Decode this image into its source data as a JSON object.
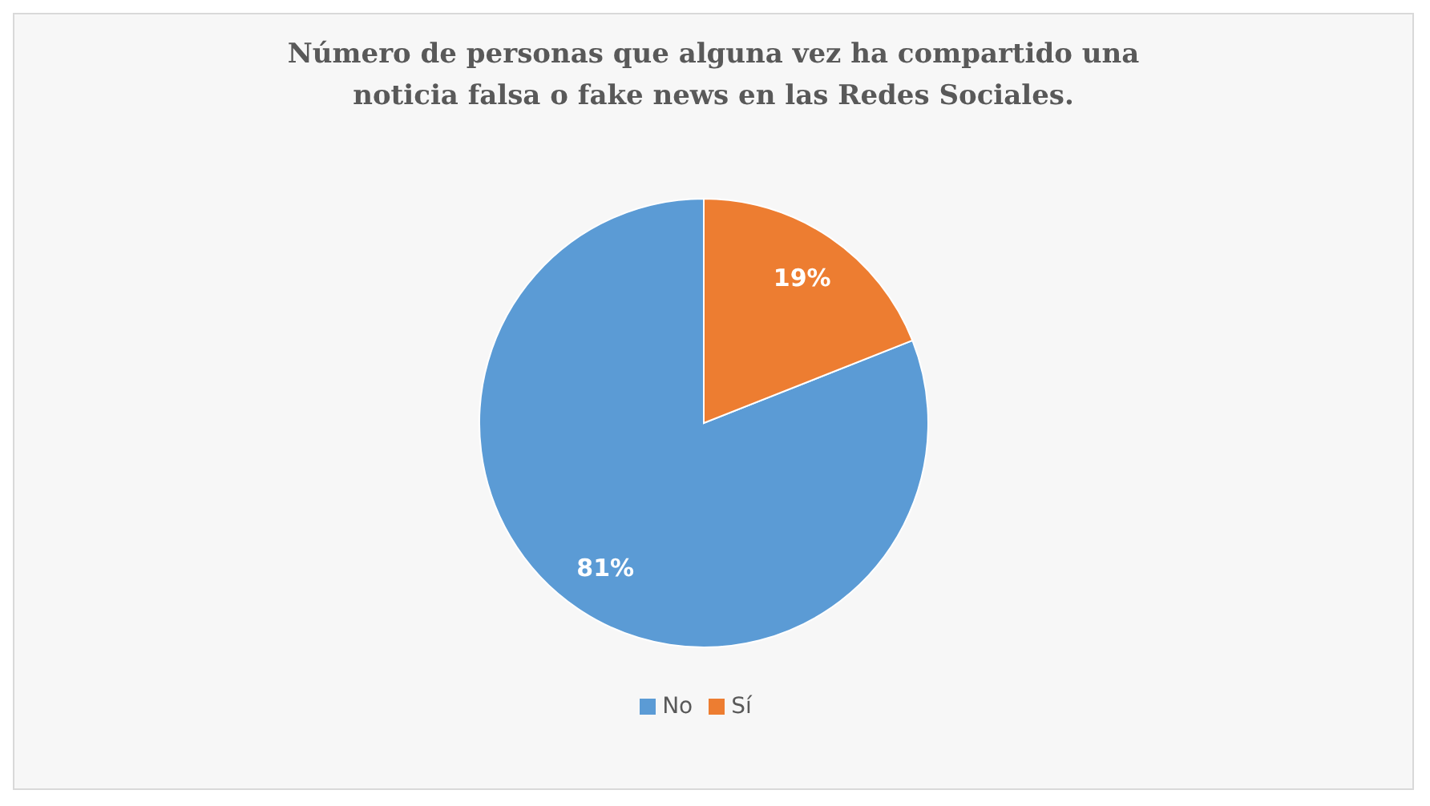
{
  "chart_data": {
    "type": "pie",
    "title": "Número de personas que alguna vez ha compartido una  noticia falsa o fake news en las Redes Sociales.",
    "categories": [
      "No",
      "Sí"
    ],
    "values": [
      81,
      19
    ],
    "colors": [
      "#5b9bd5",
      "#ed7d31"
    ],
    "value_labels": [
      "81%",
      "19%"
    ],
    "legend": "bottom"
  }
}
